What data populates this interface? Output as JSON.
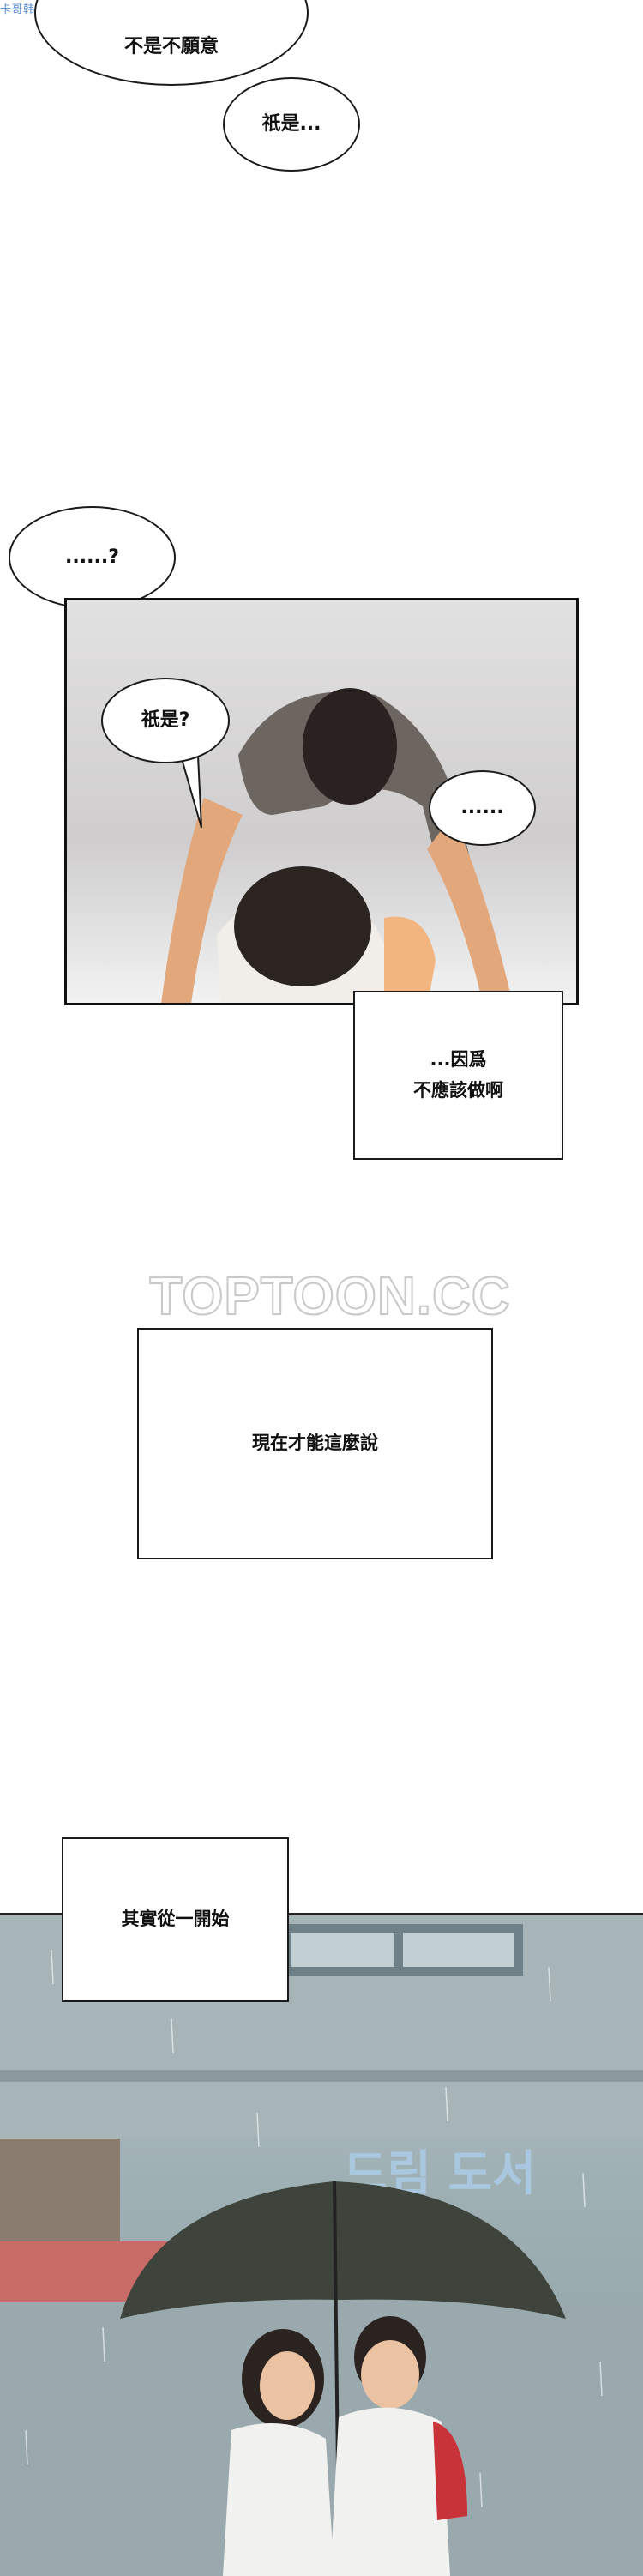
{
  "watermark_top": "卡哥韩漫特整理",
  "bubbles": {
    "b1_line1": "不是不願意",
    "b2": "祇是...",
    "b3": "......?",
    "b4": "祇是?",
    "b5": "......"
  },
  "narration": {
    "n1_line1": "...因爲",
    "n1_line2": "不應該做啊",
    "n2": "現在才能這麼說",
    "n3": "其實從一開始"
  },
  "site_watermark": "TOPTOON.CC",
  "sign_text": "드림 도서",
  "colors": {
    "sky": "#8fa7ad",
    "rain_building": "#9aa9ae",
    "umbrella": "#3e433b",
    "panel_bg": "#d7d5d4"
  }
}
